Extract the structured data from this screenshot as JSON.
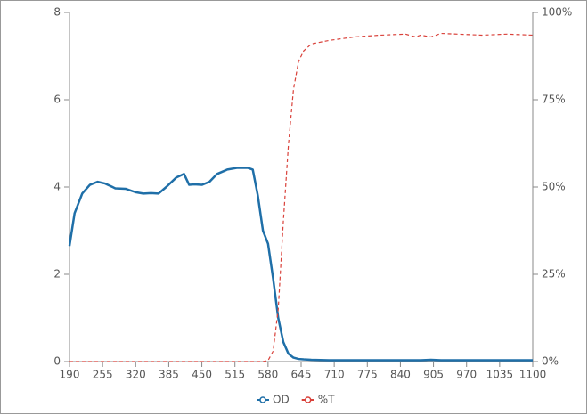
{
  "chart_data": {
    "type": "line",
    "x": [
      190,
      200,
      215,
      230,
      245,
      260,
      280,
      300,
      320,
      335,
      350,
      365,
      380,
      400,
      415,
      425,
      435,
      450,
      465,
      480,
      500,
      520,
      540,
      550,
      560,
      570,
      580,
      590,
      600,
      610,
      620,
      630,
      640,
      650,
      665,
      700,
      750,
      800,
      850,
      870,
      880,
      900,
      920,
      1000,
      1050,
      1100
    ],
    "series": [
      {
        "name": "OD",
        "color": "#1f6fa8",
        "dashed": false,
        "values": [
          2.65,
          3.4,
          3.85,
          4.05,
          4.12,
          4.08,
          3.97,
          3.96,
          3.88,
          3.85,
          3.86,
          3.85,
          4.0,
          4.22,
          4.3,
          4.05,
          4.06,
          4.05,
          4.12,
          4.3,
          4.4,
          4.44,
          4.44,
          4.4,
          3.8,
          3.0,
          2.7,
          1.9,
          1.0,
          0.45,
          0.18,
          0.09,
          0.06,
          0.05,
          0.04,
          0.03,
          0.03,
          0.03,
          0.03,
          0.03,
          0.03,
          0.04,
          0.03,
          0.03,
          0.03,
          0.03
        ]
      },
      {
        "name": "%T",
        "color": "#d9413a",
        "dashed": true,
        "axis": "y2",
        "values": [
          0,
          0,
          0,
          0,
          0,
          0,
          0,
          0,
          0,
          0,
          0,
          0,
          0,
          0,
          0,
          0,
          0,
          0,
          0,
          0,
          0,
          0,
          0,
          0,
          0,
          0,
          0.3,
          3,
          15,
          40,
          62,
          78,
          86,
          89,
          91,
          92,
          93,
          93.5,
          93.8,
          93,
          93.5,
          93,
          94,
          93.5,
          93.8,
          93.5
        ]
      }
    ],
    "xlim": [
      190,
      1100
    ],
    "xticks": [
      190,
      255,
      320,
      385,
      450,
      515,
      580,
      645,
      710,
      775,
      840,
      905,
      970,
      1035,
      1100
    ],
    "ylim": [
      0,
      8
    ],
    "yticks": [
      0,
      2,
      4,
      6,
      8
    ],
    "y2lim": [
      0,
      100
    ],
    "y2ticks": [
      {
        "value": 0,
        "label": "0%"
      },
      {
        "value": 25,
        "label": "25%"
      },
      {
        "value": 50,
        "label": "50%"
      },
      {
        "value": 75,
        "label": "75%"
      },
      {
        "value": 100,
        "label": "100%"
      }
    ],
    "grid": false,
    "legend": "bottom"
  }
}
